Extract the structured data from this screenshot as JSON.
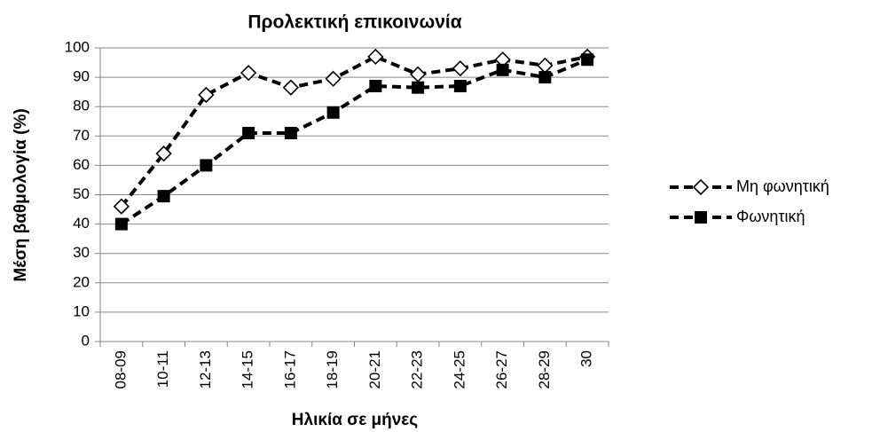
{
  "chart_data": {
    "type": "line",
    "title": "Προλεκτική επικοινωνία",
    "x_label": "Ηλικία σε μήνες",
    "y_label": "Μέση βαθμολογία (%)",
    "categories": [
      "08-09",
      "10-11",
      "12-13",
      "14-15",
      "16-17",
      "18-19",
      "20-21",
      "22-23",
      "24-25",
      "26-27",
      "28-29",
      "30"
    ],
    "series": [
      {
        "name": "Μη φωνητική",
        "color": "#000000",
        "marker": "diamond",
        "values": [
          46,
          64,
          84,
          91.5,
          86.5,
          89.5,
          97,
          91,
          93,
          96,
          94,
          97
        ]
      },
      {
        "name": "Φωνητική",
        "color": "#000000",
        "marker": "square",
        "values": [
          40,
          49.5,
          60,
          71,
          71,
          78,
          87,
          86.5,
          87,
          92.5,
          90,
          96
        ]
      }
    ],
    "ylim": [
      0,
      100
    ],
    "yticks": [
      0,
      10,
      20,
      30,
      40,
      50,
      60,
      70,
      80,
      90,
      100
    ],
    "grid": true,
    "line_style": "dashed",
    "legend": "right"
  }
}
